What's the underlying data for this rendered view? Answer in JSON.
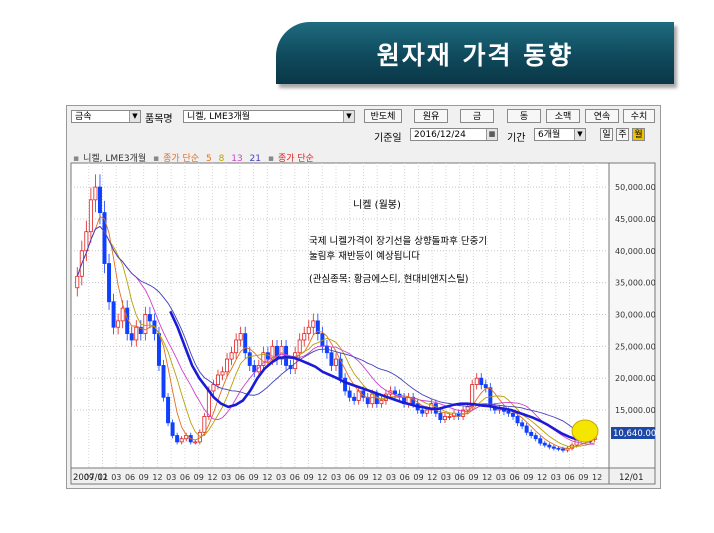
{
  "banner": {
    "title": "원자재 가격 동향"
  },
  "toolbar": {
    "market": "금속",
    "item_label": "품목명",
    "item_value": "니켈, LME3개월",
    "buttons": [
      "반도체",
      "원유",
      "금",
      "동",
      "소맥",
      "연속",
      "수치"
    ],
    "date_label": "기준일",
    "date_value": "2016/12/24",
    "period_label": "기간",
    "period_value": "6개월",
    "scale_buttons": [
      "일",
      "주",
      "월"
    ],
    "active_scale": "월"
  },
  "legend": {
    "series_name": "니켈, LME3개월",
    "ma_label": "종가 단순",
    "ma_periods": [
      "5",
      "8",
      "13",
      "21"
    ],
    "ma2_label": "종가 단순"
  },
  "annotation": {
    "title": "니켈 (월봉)",
    "line1": "국제 니켈가격이 장기선을 상향돌파후 단중기",
    "line2": "눌림후 재반등이 예상됩니다",
    "line3": "(관심종목: 황금에스티, 현대비앤지스틸)"
  },
  "colors": {
    "ma5": "#e07020",
    "ma8": "#b8a000",
    "ma13": "#d040d0",
    "ma21": "#4040c0",
    "ma_long": "#1a1ad8",
    "up": "#e02020",
    "down": "#1040ff",
    "price_box": "#1e48a8",
    "highlight": "#f5e600"
  },
  "chart_data": {
    "type": "candlestick",
    "title": "니켈 (월봉)",
    "x_start_label": "2007/01",
    "x_end_label": "12/01",
    "x_ticks": [
      "2007/01",
      "09",
      "12",
      "03",
      "06",
      "09",
      "12",
      "03",
      "06",
      "09",
      "12",
      "03",
      "06",
      "09",
      "12",
      "03",
      "06",
      "09",
      "12",
      "03",
      "06",
      "09",
      "12",
      "03",
      "06",
      "09",
      "12",
      "03",
      "06",
      "09",
      "12",
      "03",
      "06",
      "09",
      "12",
      "03",
      "06",
      "09",
      "12"
    ],
    "y_ticks": [
      "50,000.00",
      "45,000.00",
      "40,000.00",
      "35,000.00",
      "30,000.00",
      "25,000.00",
      "20,000.00",
      "15,000.00",
      "10,640.00"
    ],
    "ylim": [
      7000,
      53000
    ],
    "current_price": "10,640.00",
    "closes": [
      36000,
      40000,
      43000,
      48000,
      50000,
      46000,
      38000,
      32000,
      28000,
      29000,
      31000,
      27000,
      26000,
      28000,
      27000,
      30000,
      29000,
      27000,
      22000,
      17000,
      13000,
      11000,
      10000,
      10500,
      11000,
      10000,
      10000,
      11500,
      14000,
      18000,
      19000,
      20500,
      21000,
      23000,
      24000,
      26000,
      27000,
      24000,
      22000,
      21000,
      22000,
      24000,
      23000,
      25000,
      23000,
      25000,
      22000,
      21500,
      24000,
      26000,
      27000,
      28000,
      29000,
      27000,
      25000,
      24000,
      22000,
      23000,
      20000,
      18000,
      17000,
      16500,
      18000,
      17000,
      16000,
      17500,
      16000,
      16500,
      17500,
      18000,
      17500,
      17000,
      16000,
      17000,
      16000,
      15000,
      14500,
      15000,
      16000,
      14500,
      13500,
      14000,
      14000,
      14500,
      14000,
      15000,
      15500,
      19000,
      20000,
      19000,
      18500,
      15500,
      15000,
      15200,
      14800,
      14500,
      14000,
      13000,
      12500,
      11500,
      11000,
      10500,
      9800,
      9500,
      9200,
      9000,
      8900,
      8700,
      9000,
      9500,
      10500,
      10200,
      10000,
      10400,
      10640
    ],
    "ma_long_series": [
      30500,
      28000,
      25000,
      22000,
      20000,
      18500,
      17000,
      16000,
      15500,
      15800,
      16500,
      18000,
      20000,
      21500,
      22500,
      23200,
      23300,
      23200,
      22800,
      22300,
      21800,
      21000,
      20500,
      20000,
      19400,
      19000,
      18600,
      18200,
      17800,
      17400,
      17000,
      16600,
      16200,
      15900,
      15600,
      15400,
      15200,
      15200,
      15500,
      15800,
      16000,
      16000,
      15900,
      15700,
      15600,
      15400,
      15200,
      15000,
      14600,
      14200,
      13800,
      13300,
      12700,
      12000,
      11300,
      10800,
      10400,
      10200,
      10100
    ]
  }
}
